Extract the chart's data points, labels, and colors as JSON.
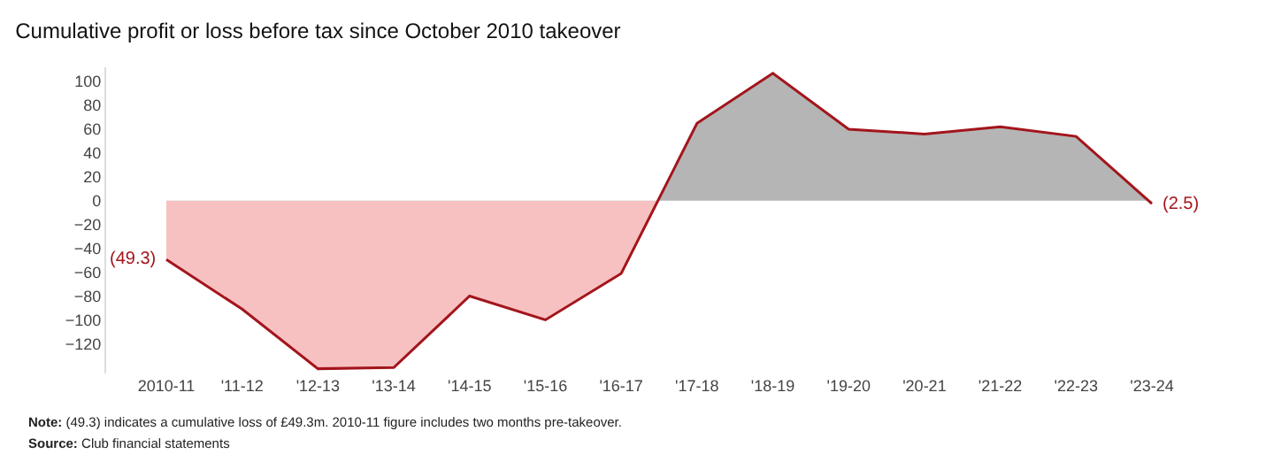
{
  "chart_data": {
    "type": "area",
    "title": "Cumulative profit or loss before tax since October 2010 takeover",
    "categories": [
      "2010-11",
      "'11-12",
      "'12-13",
      "'13-14",
      "'14-15",
      "'15-16",
      "'16-17",
      "'17-18",
      "'18-19",
      "'19-20",
      "'20-21",
      "'21-22",
      "'22-23",
      "'23-24"
    ],
    "series": [
      {
        "color": "#a3151c",
        "values": [
          -49.3,
          -91,
          -141,
          -140,
          -80,
          -100,
          -61,
          65,
          107,
          60,
          56,
          62,
          54,
          -2.5
        ],
        "value_labels": [
          "(49.3)",
          null,
          null,
          null,
          null,
          null,
          null,
          null,
          null,
          null,
          null,
          null,
          null,
          "(2.5)"
        ]
      }
    ],
    "ylim": [
      -145,
      112
    ],
    "yticks": [
      100,
      80,
      60,
      40,
      20,
      0,
      -20,
      -40,
      -60,
      -80,
      -100,
      -120
    ],
    "grid": false,
    "marker": "none",
    "annotations": [
      "Note: (49.3) indicates a cumulative loss of £49.3m. 2010-11 figure includes two months pre-takeover.",
      "Source: Club financial statements"
    ]
  }
}
